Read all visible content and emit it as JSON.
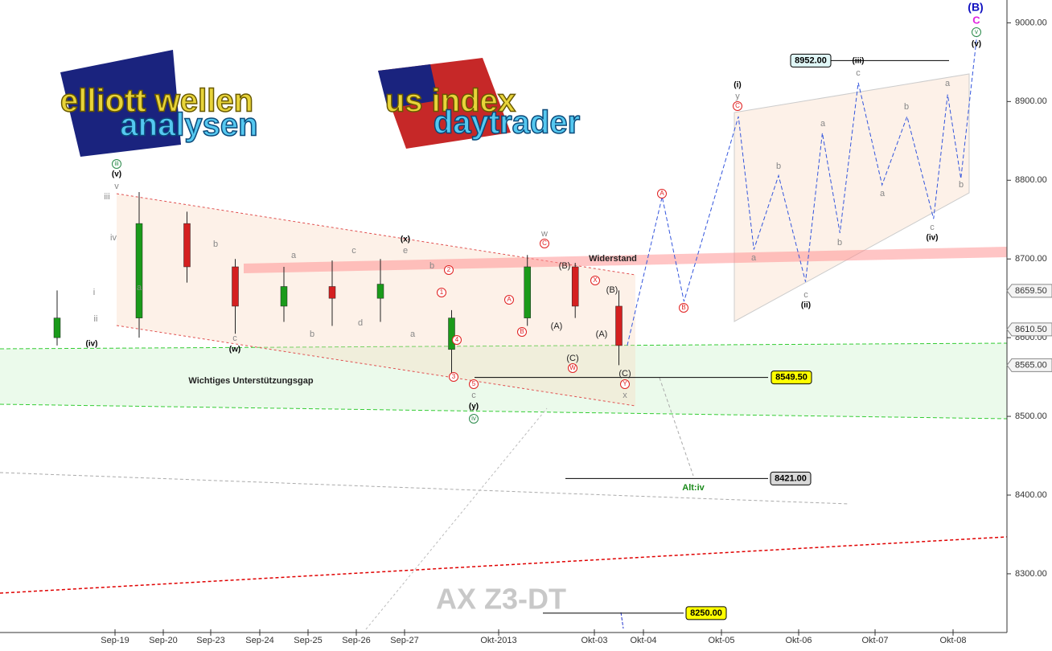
{
  "chart_data": {
    "type": "candlestick",
    "title": "AX Z3-DT",
    "logos": [
      "elliott wellen",
      "analysen",
      "us index",
      "daytrader"
    ],
    "xlim": [
      -2.4,
      14.3
    ],
    "ylim": [
      8207,
      9029
    ],
    "xticks": [
      {
        "value": 0,
        "label": "Sep-19"
      },
      {
        "value": 1,
        "label": "Sep-20"
      },
      {
        "value": 2,
        "label": "Sep-23"
      },
      {
        "value": 3,
        "label": "Sep-24"
      },
      {
        "value": 4,
        "label": "Sep-25"
      },
      {
        "value": 5,
        "label": "Sep-26"
      },
      {
        "value": 6,
        "label": "Sep-27"
      },
      {
        "value": 7,
        "label": "Okt-2013"
      },
      {
        "value": 8,
        "label": "Okt-03"
      },
      {
        "value": 9,
        "label": "Okt-04"
      },
      {
        "value": 10,
        "label": "Okt-05"
      },
      {
        "value": 11,
        "label": "Okt-06"
      },
      {
        "value": 12,
        "label": "Okt-07"
      },
      {
        "value": 13,
        "label": "Okt-08"
      }
    ],
    "yticks": [
      {
        "value": 8300,
        "label": "8300.00"
      },
      {
        "value": 8400,
        "label": "8400.00"
      },
      {
        "value": 8500,
        "label": "8500.00"
      },
      {
        "value": 8600,
        "label": "8600.00"
      },
      {
        "value": 8700,
        "label": "8700.00"
      },
      {
        "value": 8800,
        "label": "8800.00"
      },
      {
        "value": 8900,
        "label": "8900.00"
      },
      {
        "value": 9000,
        "label": "9000.00"
      }
    ],
    "candles": {
      "up_color": "#1a9a1a",
      "down_color": "#d42020",
      "x": [
        -1.2,
        0.5,
        1.5,
        2.5,
        3.5,
        4.5,
        5.5,
        6.5,
        7.3,
        7.8,
        8.5
      ],
      "open": [
        8600,
        8625,
        8745,
        8690,
        8640,
        8665,
        8650,
        8585,
        8625,
        8690,
        8640
      ],
      "high": [
        8660,
        8785,
        8760,
        8700,
        8690,
        8698,
        8700,
        8635,
        8705,
        8695,
        8660
      ],
      "low": [
        8590,
        8600,
        8670,
        8605,
        8620,
        8615,
        8620,
        8550,
        8615,
        8625,
        8565
      ],
      "close": [
        8625,
        8745,
        8690,
        8640,
        8665,
        8650,
        8668,
        8625,
        8690,
        8640,
        8590
      ]
    },
    "projection": {
      "color": "#3355dd",
      "x": [
        8.67,
        9.24,
        9.52,
        10.22,
        10.42,
        10.74,
        11.09,
        11.31,
        11.54,
        11.78,
        12.09,
        12.41,
        12.75,
        12.93,
        13.1,
        13.31
      ],
      "values": [
        8590,
        8779,
        8646,
        8881,
        8712,
        8806,
        8671,
        8860,
        8733,
        8924,
        8794,
        8881,
        8751,
        8909,
        8802,
        8988
      ]
    },
    "levels": [
      {
        "value": 8952,
        "label": "8952.00",
        "color": "#e0f7f7"
      },
      {
        "value": 8549.5,
        "label": "8549.50",
        "color": "#ffff00"
      },
      {
        "value": 8421,
        "label": "8421.00",
        "color": "#d8d8d8"
      },
      {
        "value": 8250,
        "label": "8250.00",
        "color": "#ffff00"
      }
    ],
    "price_tags": [
      {
        "value": 8659.5,
        "label": "8659.50"
      },
      {
        "value": 8610.5,
        "label": "8610.50"
      },
      {
        "value": 8565,
        "label": "8565.00"
      }
    ],
    "annotations": [
      "(B)",
      "C",
      "v",
      "(v)",
      "(iii)",
      "c",
      "(i)",
      "y",
      "C",
      "a",
      "b",
      "a",
      "b",
      "c",
      "(ii)",
      "a",
      "b",
      "c",
      "(iv)",
      "a",
      "b",
      "A",
      "B",
      "Widerstand",
      "iii",
      "(v)",
      "v",
      "iii",
      "iv",
      "i",
      "ii",
      "(iv)",
      "a",
      "b",
      "c",
      "(w)",
      "a",
      "b",
      "c",
      "d",
      "(x)",
      "e",
      "a",
      "b",
      "1",
      "2",
      "4",
      "3",
      "5",
      "c",
      "(y)",
      "iv",
      "Wichtiges Unterstützungsgap",
      "w",
      "C",
      "A",
      "B",
      "(B)",
      "(A)",
      "(C)",
      "W",
      "X",
      "(B)",
      "(A)",
      "(C)",
      "Y",
      "x",
      "Alt:iv"
    ]
  }
}
